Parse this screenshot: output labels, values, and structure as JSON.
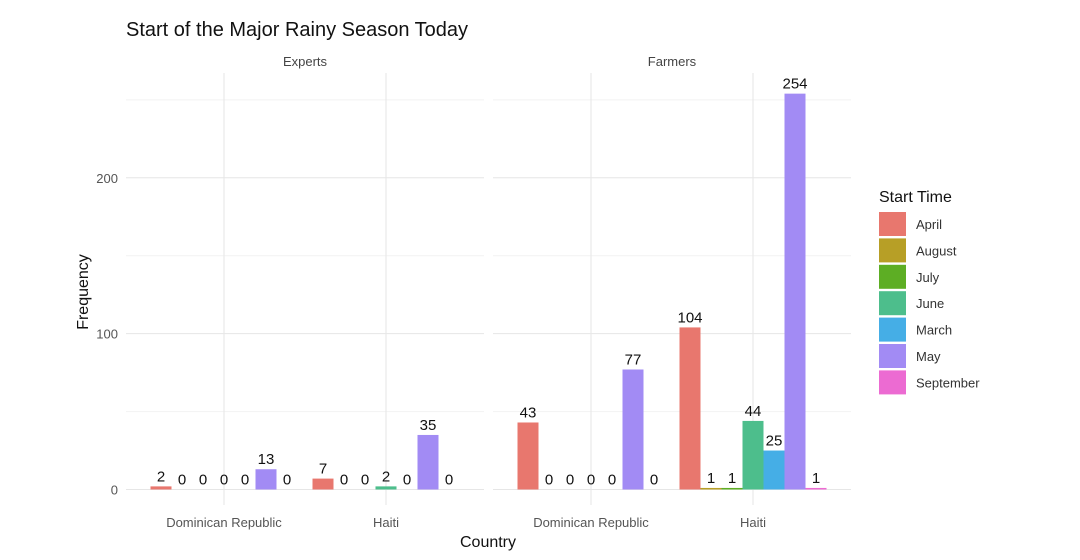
{
  "chart_data": {
    "type": "bar",
    "title": "Start of the Major Rainy Season Today",
    "xlabel": "Country",
    "ylabel": "Frequency",
    "ylim": [
      0,
      254
    ],
    "yticks": [
      0,
      100,
      200
    ],
    "legend_title": "Start Time",
    "legend_position": "right",
    "series": [
      {
        "name": "April",
        "color": "#E8776E"
      },
      {
        "name": "August",
        "color": "#B79F26"
      },
      {
        "name": "July",
        "color": "#5DAE24"
      },
      {
        "name": "June",
        "color": "#4DBE8C"
      },
      {
        "name": "March",
        "color": "#45AEE6"
      },
      {
        "name": "May",
        "color": "#A28BF4"
      },
      {
        "name": "September",
        "color": "#EC6BD2"
      }
    ],
    "panels": [
      {
        "name": "Experts",
        "categories": [
          {
            "name": "Dominican Republic",
            "values": [
              2,
              0,
              0,
              0,
              0,
              13,
              0
            ]
          },
          {
            "name": "Haiti",
            "values": [
              7,
              0,
              0,
              2,
              0,
              35,
              0
            ]
          }
        ]
      },
      {
        "name": "Farmers",
        "categories": [
          {
            "name": "Dominican Republic",
            "values": [
              43,
              0,
              0,
              0,
              0,
              77,
              0
            ]
          },
          {
            "name": "Haiti",
            "values": [
              104,
              1,
              1,
              44,
              25,
              254,
              1
            ]
          }
        ]
      }
    ]
  }
}
